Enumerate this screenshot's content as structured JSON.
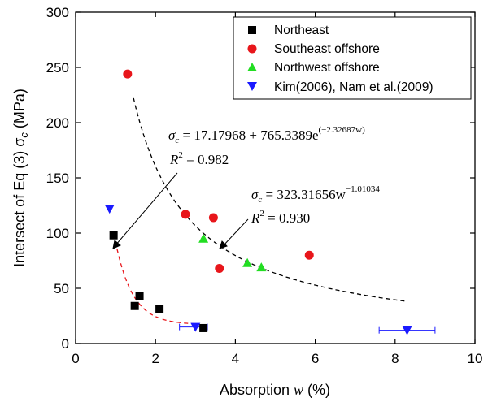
{
  "chart_data": {
    "type": "scatter",
    "xlabel_main": "Absorption",
    "xlabel_var": "w",
    "xlabel_unit": "(%)",
    "ylabel_main": "Intersect of Eq (3)",
    "ylabel_sym": "σ",
    "ylabel_sub": "c",
    "ylabel_unit": "(MPa)",
    "xlim": [
      0,
      10
    ],
    "ylim": [
      0,
      300
    ],
    "xticks": [
      0,
      2,
      4,
      6,
      8,
      10
    ],
    "yticks": [
      0,
      50,
      100,
      150,
      200,
      250,
      300
    ],
    "legend_position": "top-right",
    "series": [
      {
        "name": "Northeast",
        "marker": "square",
        "color": "#000000",
        "points": [
          [
            0.95,
            98
          ],
          [
            1.48,
            34
          ],
          [
            1.6,
            43
          ],
          [
            2.1,
            31
          ],
          [
            3.2,
            14
          ]
        ]
      },
      {
        "name": "Southeast offshore",
        "marker": "circle",
        "color": "#e8161b",
        "points": [
          [
            1.3,
            244
          ],
          [
            2.75,
            117
          ],
          [
            3.45,
            114
          ],
          [
            3.6,
            68
          ],
          [
            5.85,
            80
          ]
        ]
      },
      {
        "name": "Northwest offshore",
        "marker": "triangle-up",
        "color": "#22dd22",
        "points": [
          [
            3.2,
            95
          ],
          [
            4.3,
            73
          ],
          [
            4.65,
            69
          ]
        ]
      },
      {
        "name": "Kim(2006), Nam et al.(2009)",
        "marker": "triangle-down",
        "color": "#1a1aff",
        "points": [
          [
            0.85,
            122
          ],
          [
            3.0,
            15
          ],
          [
            8.3,
            12
          ]
        ],
        "xerr": [
          null,
          [
            2.6,
            3.3
          ],
          [
            7.6,
            9.0
          ]
        ]
      }
    ],
    "fits": [
      {
        "label": "exponential fit",
        "color": "#e8161b",
        "dash": "5,4",
        "model": "exp",
        "a": 17.17968,
        "b": 765.3389,
        "c": -2.32687,
        "x_range": [
          1.0,
          3.1
        ]
      },
      {
        "label": "power fit",
        "color": "#000000",
        "dash": "5,4",
        "model": "power",
        "a": 323.31656,
        "b": -1.01034,
        "x_range": [
          1.45,
          8.3
        ]
      }
    ],
    "annotations": {
      "eq1_lhs": "σ",
      "eq1_lhs_sub": "c",
      "eq1_rhs": " = 17.17968 + 765.3389e",
      "eq1_exp": "(−2.32687w)",
      "eq1_r2_label": "R",
      "eq1_r2_sup": "2",
      "eq1_r2_value": " = 0.982",
      "eq2_lhs": "σ",
      "eq2_lhs_sub": "c",
      "eq2_rhs": " = 323.31656w",
      "eq2_exp": "−1.01034",
      "eq2_r2_label": "R",
      "eq2_r2_sup": "2",
      "eq2_r2_value": " = 0.930"
    }
  }
}
